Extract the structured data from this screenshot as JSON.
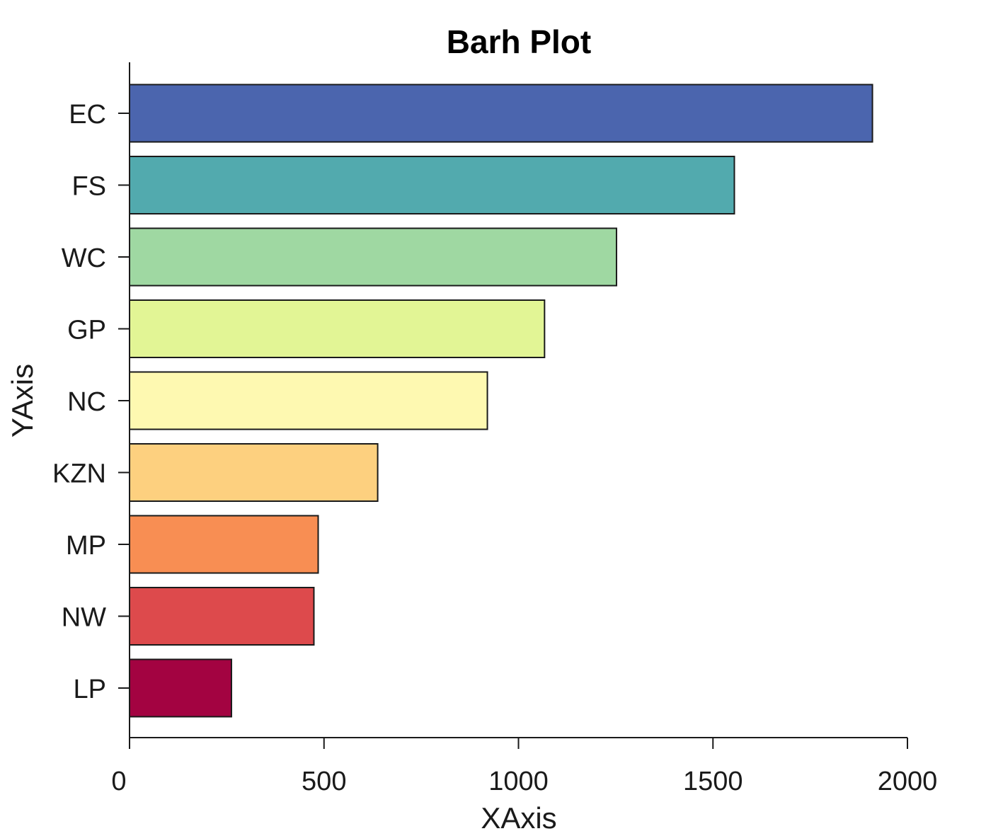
{
  "chart_data": {
    "type": "bar",
    "orientation": "horizontal",
    "title": "Barh Plot",
    "xlabel": "XAxis",
    "ylabel": "YAxis",
    "xlim": [
      0,
      2000
    ],
    "xticks": [
      0,
      500,
      1000,
      1500,
      2000
    ],
    "grid": false,
    "categories": [
      "EC",
      "FS",
      "WC",
      "GP",
      "NC",
      "KZN",
      "MP",
      "NW",
      "LP"
    ],
    "values": [
      1910,
      1555,
      1252,
      1067,
      920,
      638,
      485,
      474,
      262
    ],
    "colors": [
      "#4b65ae",
      "#52aaae",
      "#9fd8a2",
      "#e2f595",
      "#fef9b1",
      "#fdd07f",
      "#f88e53",
      "#dd4a4c",
      "#a30341"
    ]
  }
}
